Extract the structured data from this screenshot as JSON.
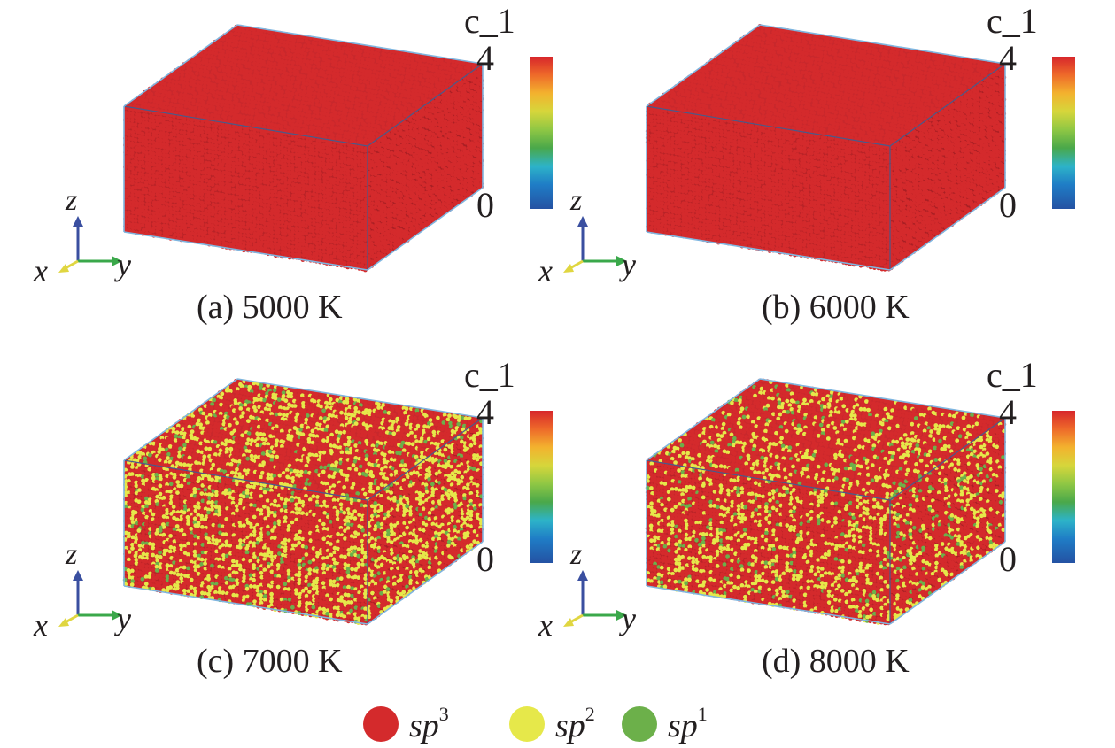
{
  "panels": [
    {
      "caption": "(a) 5000 K",
      "cbar_title": "c_1",
      "cbar_max": "4",
      "cbar_min": "0",
      "axes": {
        "x": "x",
        "y": "y",
        "z": "z"
      },
      "mix": {
        "sp3": 1.0,
        "sp2": 0.0,
        "sp1": 0.0
      }
    },
    {
      "caption": "(b) 6000 K",
      "cbar_title": "c_1",
      "cbar_max": "4",
      "cbar_min": "0",
      "axes": {
        "x": "x",
        "y": "y",
        "z": "z"
      },
      "mix": {
        "sp3": 1.0,
        "sp2": 0.0,
        "sp1": 0.0
      }
    },
    {
      "caption": "(c) 7000 K",
      "cbar_title": "c_1",
      "cbar_max": "4",
      "cbar_min": "0",
      "axes": {
        "x": "x",
        "y": "y",
        "z": "z"
      },
      "mix": {
        "sp3": 0.62,
        "sp2": 0.32,
        "sp1": 0.06
      }
    },
    {
      "caption": "(d) 8000 K",
      "cbar_title": "c_1",
      "cbar_max": "4",
      "cbar_min": "0",
      "axes": {
        "x": "x",
        "y": "y",
        "z": "z"
      },
      "mix": {
        "sp3": 0.7,
        "sp2": 0.25,
        "sp1": 0.05
      }
    }
  ],
  "legend": [
    {
      "base": "sp",
      "sup": "3",
      "color": "#d42a2c"
    },
    {
      "base": "sp",
      "sup": "2",
      "color": "#e6e84a"
    },
    {
      "base": "sp",
      "sup": "1",
      "color": "#6cb04a"
    }
  ],
  "colors": {
    "box_edge": "#7fb6e0",
    "box_inner_edge": "#4a5a8a",
    "axis_z": "#3a4fa0",
    "axis_y": "#3aa84a",
    "axis_x": "#e0d640"
  }
}
